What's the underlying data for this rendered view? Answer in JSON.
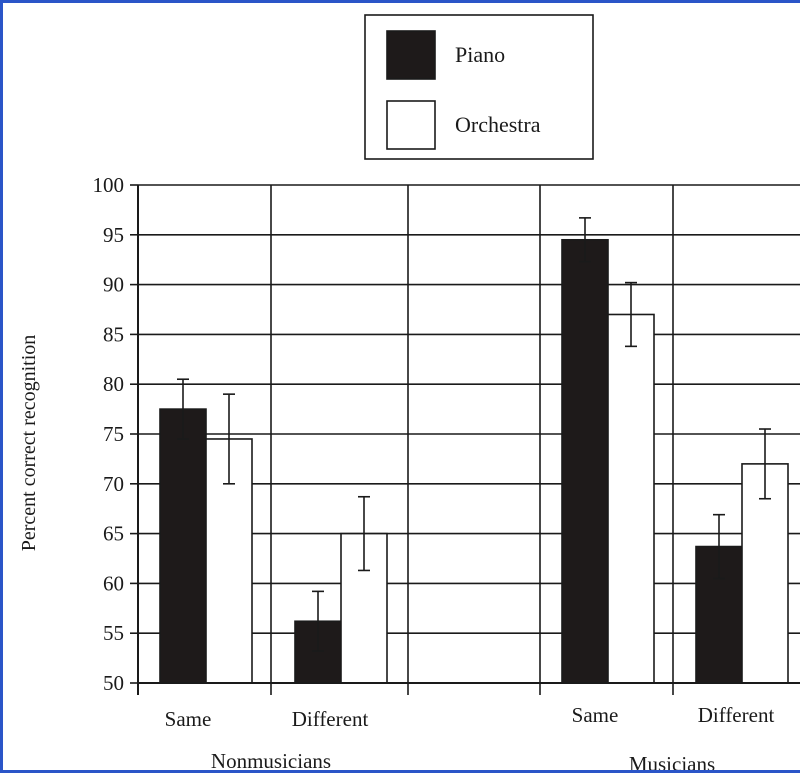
{
  "chart_data": {
    "type": "bar",
    "ylabel": "Percent correct recognition",
    "ylim": [
      50,
      100
    ],
    "yticks": [
      50,
      55,
      60,
      65,
      70,
      75,
      80,
      85,
      90,
      95,
      100
    ],
    "groups": [
      {
        "label": "Nonmusicians",
        "conditions": [
          "Same",
          "Different"
        ]
      },
      {
        "label": "Musicians",
        "conditions": [
          "Same",
          "Different"
        ]
      }
    ],
    "series": [
      {
        "name": "Piano",
        "color": "#1e1a1a",
        "values": [
          77.5,
          56.2,
          94.5,
          63.7
        ],
        "errors": [
          3.0,
          3.0,
          2.2,
          3.2
        ]
      },
      {
        "name": "Orchestra",
        "color": "#ffffff",
        "values": [
          74.5,
          65.0,
          87.0,
          72.0
        ],
        "errors": [
          4.5,
          3.7,
          3.2,
          3.5
        ]
      }
    ],
    "legend_position": "top-center",
    "grid": true
  }
}
